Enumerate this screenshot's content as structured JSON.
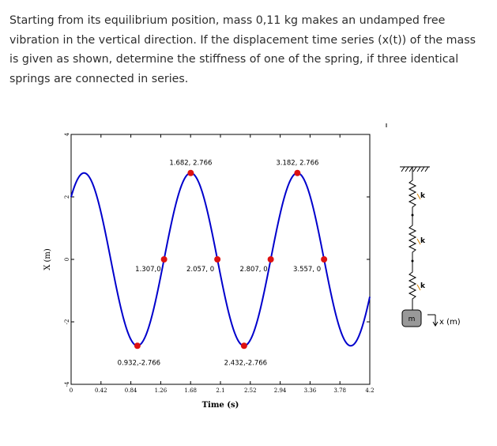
{
  "question": {
    "text": "Starting from its equilibrium position, mass 0,11 kg makes an undamped free vibration in the vertical direction. If the displacement time series (x(t)) of the mass is given as shown, determine the stiffness of one of the spring, if three identical springs are connected in series."
  },
  "chart_data": {
    "type": "line",
    "xlabel": "Time (s)",
    "ylabel": "X (m)",
    "xlim": [
      0,
      4.2
    ],
    "ylim": [
      -4,
      4
    ],
    "x_ticks": [
      "0",
      "0.42",
      "0.84",
      "1.26",
      "1.68",
      "2.1",
      "2.52",
      "2.94",
      "3.36",
      "3.78",
      "4.2"
    ],
    "y_ticks": [
      "4",
      "2",
      "0",
      "-2",
      "-4"
    ],
    "series": [
      {
        "amplitude": 2.766,
        "period": 1.5,
        "zero_time": 1.307,
        "color": "#0000cc"
      }
    ],
    "points": [
      {
        "t": 0.932,
        "x": -2.766,
        "label": "0.932,-2.766"
      },
      {
        "t": 1.307,
        "x": 0,
        "label": "1.307,0"
      },
      {
        "t": 1.682,
        "x": 2.766,
        "label": "1.682, 2.766"
      },
      {
        "t": 2.057,
        "x": 0,
        "label": "2.057, 0"
      },
      {
        "t": 2.432,
        "x": -2.766,
        "label": "2.432,-2.766"
      },
      {
        "t": 2.807,
        "x": 0,
        "label": "2.807, 0"
      },
      {
        "t": 3.182,
        "x": 2.766,
        "label": "3.182, 2.766"
      },
      {
        "t": 3.557,
        "x": 0,
        "label": "3.557, 0"
      }
    ],
    "point_color": "#dd1111"
  },
  "diagram": {
    "spring_labels": [
      "k",
      "k",
      "k"
    ],
    "mass_label": "m",
    "direction_label": "x (m)"
  }
}
